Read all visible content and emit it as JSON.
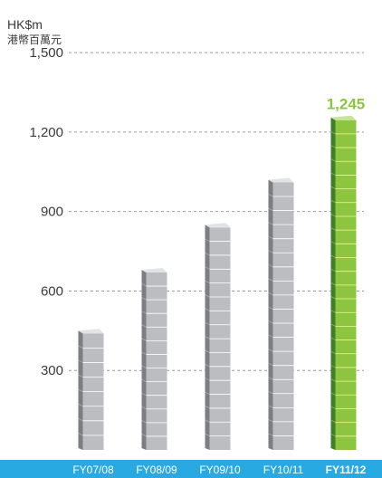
{
  "chart_data": {
    "type": "bar",
    "ylabel_lines": [
      "HK$m",
      "港幣百萬元"
    ],
    "categories": [
      "FY07/08",
      "FY08/09",
      "FY09/10",
      "FY10/11",
      "FY11/12"
    ],
    "values": [
      440,
      670,
      840,
      1010,
      1245
    ],
    "highlight_index": 4,
    "highlight_label": "1,245",
    "yticks": [
      300,
      600,
      900,
      1200,
      1500
    ],
    "ytick_labels": [
      "300",
      "600",
      "900",
      "1,200",
      "1,500"
    ],
    "ylim": [
      0,
      1500
    ],
    "grid": "dashed-horizontal",
    "colors": {
      "bar": "#bcbdc0",
      "bar_side": "#7d7e81",
      "bar_top": "#e2e3e5",
      "highlight": "#8cc63f",
      "highlight_side": "#3f7f2a",
      "highlight_top": "#c6e39a",
      "highlight_label": "#8cc63f",
      "axis_band": "#29a9e1",
      "grid": "#9a9a9a",
      "text": "#3a3a3a"
    }
  }
}
